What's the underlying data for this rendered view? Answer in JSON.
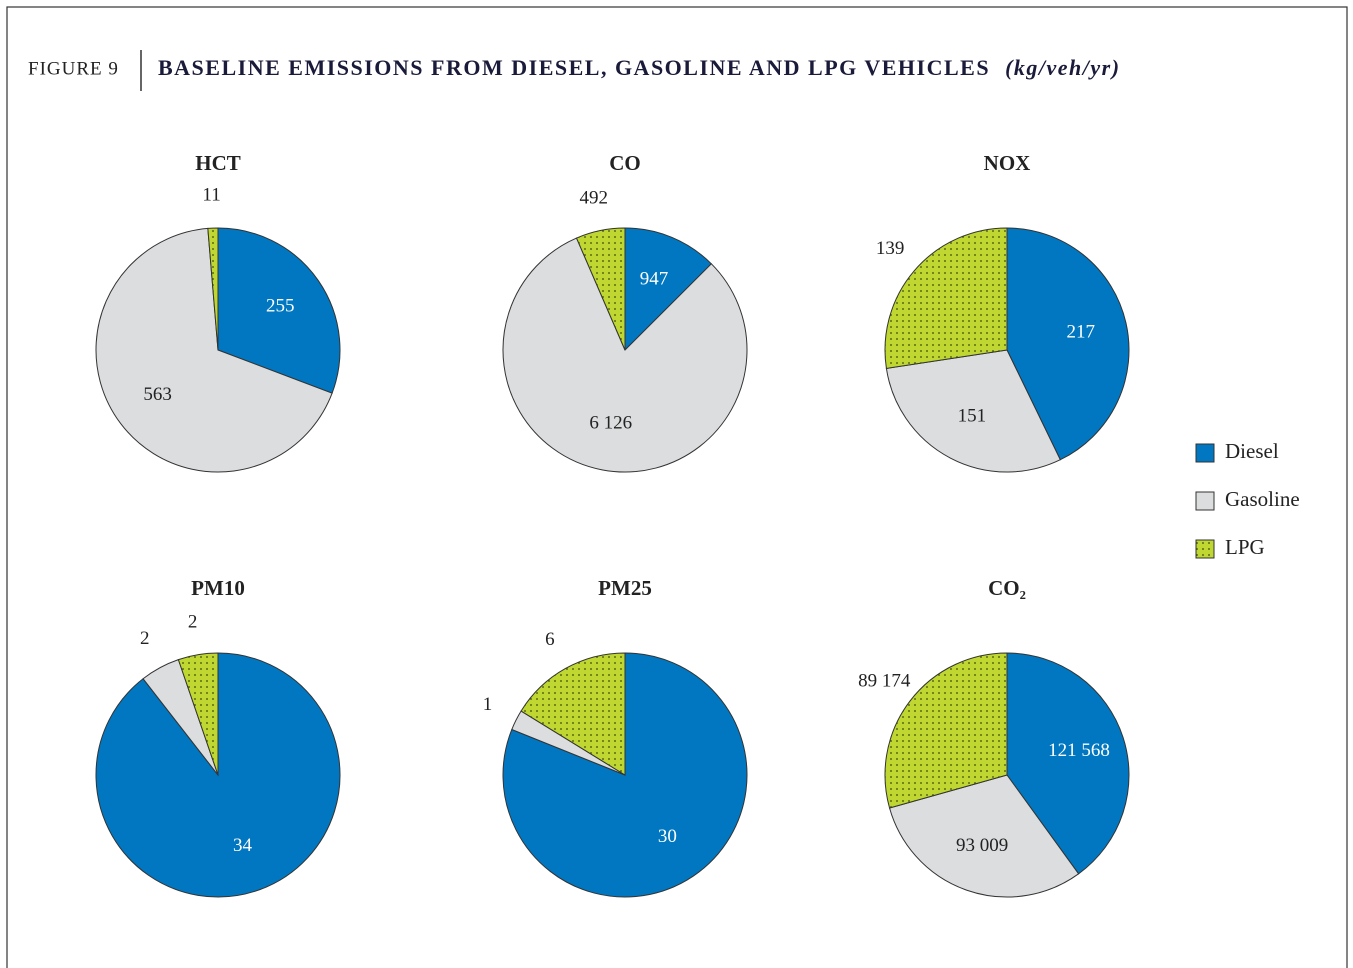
{
  "figure_label": "FIGURE 9",
  "title": "BASELINE EMISSIONS FROM DIESEL, GASOLINE AND LPG VEHICLES",
  "units": "(kg/veh/yr)",
  "chart_data": [
    {
      "type": "pie",
      "title": "HCT",
      "categories": [
        "Diesel",
        "Gasoline",
        "LPG"
      ],
      "values": [
        255,
        563,
        11
      ],
      "colors": [
        "#0077c0",
        "#dcdddf",
        "#bfd730"
      ]
    },
    {
      "type": "pie",
      "title": "CO",
      "categories": [
        "Diesel",
        "Gasoline",
        "LPG"
      ],
      "values": [
        947,
        6126,
        492
      ],
      "value_labels": [
        "947",
        "6 126",
        "492"
      ],
      "colors": [
        "#0077c0",
        "#dcdddf",
        "#bfd730"
      ]
    },
    {
      "type": "pie",
      "title": "NOX",
      "categories": [
        "Diesel",
        "Gasoline",
        "LPG"
      ],
      "values": [
        217,
        151,
        139
      ],
      "colors": [
        "#0077c0",
        "#dcdddf",
        "#bfd730"
      ]
    },
    {
      "type": "pie",
      "title": "PM10",
      "categories": [
        "Diesel",
        "Gasoline",
        "LPG"
      ],
      "values": [
        34,
        2,
        2
      ],
      "colors": [
        "#0077c0",
        "#dcdddf",
        "#bfd730"
      ]
    },
    {
      "type": "pie",
      "title": "PM25",
      "categories": [
        "Diesel",
        "Gasoline",
        "LPG"
      ],
      "values": [
        30,
        1,
        6
      ],
      "colors": [
        "#0077c0",
        "#dcdddf",
        "#bfd730"
      ]
    },
    {
      "type": "pie",
      "title": "CO₂",
      "categories": [
        "Diesel",
        "Gasoline",
        "LPG"
      ],
      "values": [
        121568,
        93009,
        89174
      ],
      "value_labels": [
        "121 568",
        "93 009",
        "89 174"
      ],
      "colors": [
        "#0077c0",
        "#dcdddf",
        "#bfd730"
      ]
    }
  ]
}
